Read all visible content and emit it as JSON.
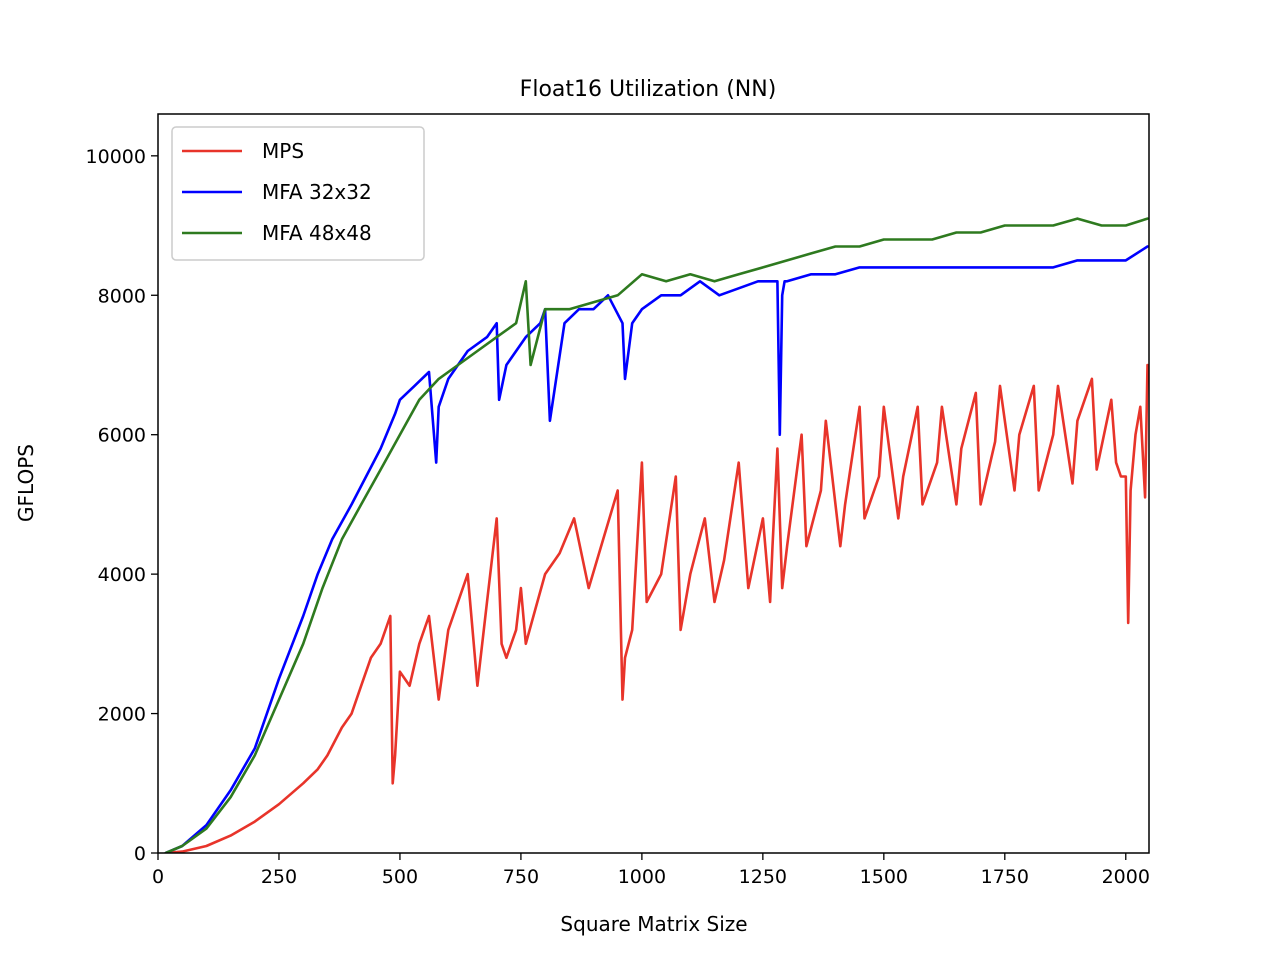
{
  "chart_data": {
    "type": "line",
    "title": "Float16 Utilization (NN)",
    "xlabel": "Square Matrix Size",
    "ylabel": "GFLOPS",
    "xlim": [
      0,
      2048
    ],
    "ylim": [
      0,
      10600
    ],
    "xticks": [
      0,
      250,
      500,
      750,
      1000,
      1250,
      1500,
      1750,
      2000
    ],
    "yticks": [
      0,
      2000,
      4000,
      6000,
      8000,
      10000
    ],
    "grid": false,
    "legend_position": "top-left",
    "series": [
      {
        "name": "MPS",
        "color": "#e8342a",
        "x": [
          16,
          50,
          100,
          150,
          200,
          250,
          300,
          330,
          350,
          380,
          400,
          420,
          440,
          460,
          480,
          485,
          490,
          500,
          520,
          540,
          560,
          580,
          600,
          620,
          640,
          660,
          680,
          700,
          710,
          720,
          740,
          750,
          760,
          780,
          800,
          830,
          860,
          890,
          920,
          950,
          960,
          965,
          980,
          1000,
          1010,
          1040,
          1070,
          1080,
          1100,
          1130,
          1150,
          1170,
          1200,
          1220,
          1250,
          1265,
          1270,
          1280,
          1290,
          1300,
          1330,
          1340,
          1370,
          1380,
          1410,
          1420,
          1450,
          1460,
          1490,
          1500,
          1530,
          1540,
          1570,
          1580,
          1610,
          1620,
          1650,
          1660,
          1690,
          1700,
          1730,
          1740,
          1770,
          1780,
          1810,
          1820,
          1850,
          1860,
          1890,
          1900,
          1930,
          1940,
          1970,
          1980,
          1990,
          2000,
          2005,
          2010,
          2020,
          2030,
          2040,
          2045
        ],
        "values": [
          0,
          20,
          100,
          250,
          450,
          700,
          1000,
          1200,
          1400,
          1800,
          2000,
          2400,
          2800,
          3000,
          3400,
          1000,
          1400,
          2600,
          2400,
          3000,
          3400,
          2200,
          3200,
          3600,
          4000,
          2400,
          3600,
          4800,
          3000,
          2800,
          3200,
          3800,
          3000,
          3500,
          4000,
          4300,
          4800,
          3800,
          4500,
          5200,
          2200,
          2800,
          3200,
          5600,
          3600,
          4000,
          5400,
          3200,
          4000,
          4800,
          3600,
          4200,
          5600,
          3800,
          4800,
          3600,
          4400,
          5800,
          3800,
          4400,
          6000,
          4400,
          5200,
          6200,
          4400,
          5000,
          6400,
          4800,
          5400,
          6400,
          4800,
          5400,
          6400,
          5000,
          5600,
          6400,
          5000,
          5800,
          6600,
          5000,
          5900,
          6700,
          5200,
          6000,
          6700,
          5200,
          6000,
          6700,
          5300,
          6200,
          6800,
          5500,
          6500,
          5600,
          5400,
          5400,
          3300,
          5200,
          6000,
          6400,
          5100,
          7000
        ]
      },
      {
        "name": "MFA 32x32",
        "color": "#0000ff",
        "x": [
          16,
          50,
          100,
          150,
          200,
          250,
          300,
          330,
          360,
          400,
          430,
          460,
          490,
          500,
          530,
          560,
          575,
          580,
          600,
          640,
          680,
          700,
          705,
          720,
          760,
          790,
          800,
          810,
          840,
          870,
          900,
          930,
          960,
          965,
          980,
          1000,
          1040,
          1080,
          1120,
          1160,
          1200,
          1240,
          1280,
          1285,
          1290,
          1295,
          1300,
          1350,
          1400,
          1450,
          1500,
          1550,
          1600,
          1650,
          1700,
          1750,
          1800,
          1850,
          1900,
          1950,
          2000,
          2045
        ],
        "values": [
          0,
          100,
          400,
          900,
          1500,
          2500,
          3400,
          4000,
          4500,
          5000,
          5400,
          5800,
          6300,
          6500,
          6700,
          6900,
          5600,
          6400,
          6800,
          7200,
          7400,
          7600,
          6500,
          7000,
          7400,
          7600,
          7800,
          6200,
          7600,
          7800,
          7800,
          8000,
          7600,
          6800,
          7600,
          7800,
          8000,
          8000,
          8200,
          8000,
          8100,
          8200,
          8200,
          6000,
          8000,
          8200,
          8200,
          8300,
          8300,
          8400,
          8400,
          8400,
          8400,
          8400,
          8400,
          8400,
          8400,
          8400,
          8500,
          8500,
          8500,
          8700
        ]
      },
      {
        "name": "MFA 48x48",
        "color": "#2e7a1f",
        "x": [
          16,
          50,
          100,
          150,
          200,
          250,
          300,
          340,
          380,
          420,
          460,
          500,
          540,
          580,
          620,
          660,
          700,
          740,
          760,
          770,
          800,
          850,
          900,
          950,
          1000,
          1050,
          1100,
          1150,
          1200,
          1250,
          1300,
          1350,
          1400,
          1450,
          1500,
          1550,
          1600,
          1650,
          1700,
          1750,
          1800,
          1850,
          1900,
          1950,
          2000,
          2045
        ],
        "values": [
          0,
          100,
          350,
          800,
          1400,
          2200,
          3000,
          3800,
          4500,
          5000,
          5500,
          6000,
          6500,
          6800,
          7000,
          7200,
          7400,
          7600,
          8200,
          7000,
          7800,
          7800,
          7900,
          8000,
          8300,
          8200,
          8300,
          8200,
          8300,
          8400,
          8500,
          8600,
          8700,
          8700,
          8800,
          8800,
          8800,
          8900,
          8900,
          9000,
          9000,
          9000,
          9100,
          9000,
          9000,
          9100
        ]
      }
    ]
  }
}
